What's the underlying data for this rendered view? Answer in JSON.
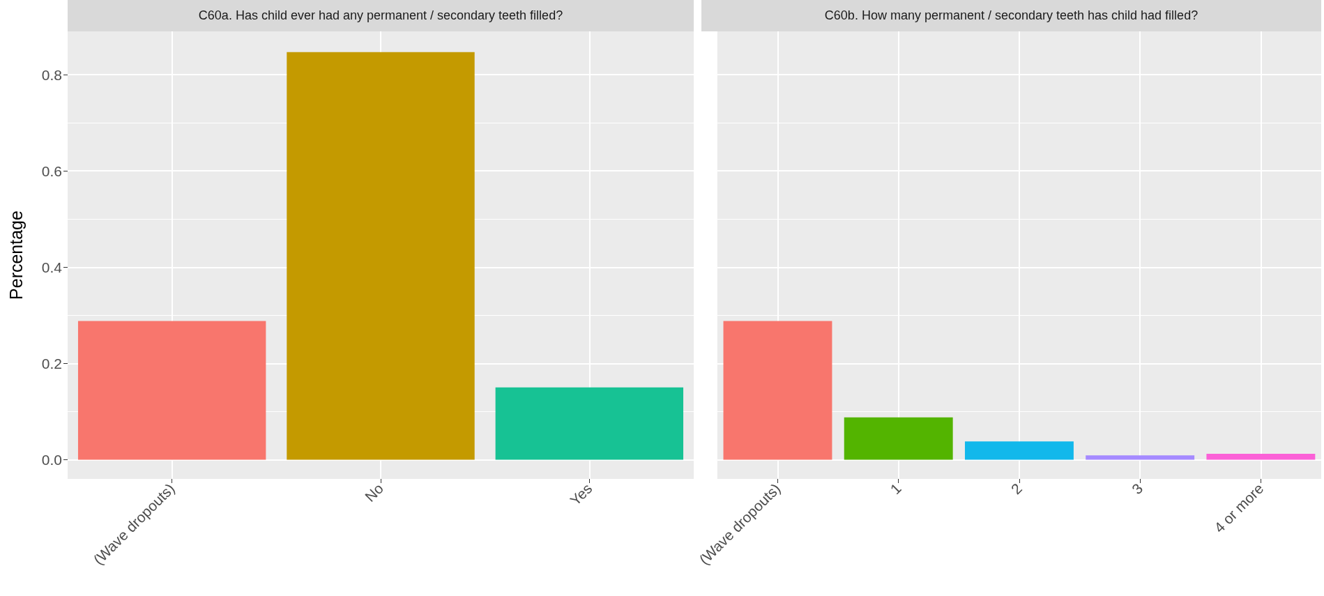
{
  "chart_data": [
    {
      "type": "bar",
      "title": "C60a. Has child ever had any permanent / secondary teeth filled?",
      "ylabel": "Percentage",
      "categories": [
        "(Wave dropouts)",
        "No",
        "Yes"
      ],
      "values": [
        0.288,
        0.847,
        0.15
      ],
      "colors": [
        "#f8766d",
        "#c49a00",
        "#17c294"
      ],
      "ylim": [
        -0.04,
        0.89
      ],
      "yticks": [
        {
          "value": 0,
          "label": "0.0"
        },
        0.2,
        0.4,
        0.6,
        0.8
      ],
      "grid": true
    },
    {
      "type": "bar",
      "title": "C60b. How many permanent / secondary teeth has child had filled?",
      "categories": [
        "(Wave dropouts)",
        "1",
        "2",
        "3",
        "4 or more"
      ],
      "values": [
        0.288,
        0.088,
        0.038,
        0.009,
        0.012
      ],
      "colors": [
        "#f8766d",
        "#53b400",
        "#12b8eb",
        "#a58aff",
        "#fb61d7"
      ],
      "ylim": [
        -0.04,
        0.89
      ],
      "yticks": [
        0,
        0.2,
        0.4,
        0.6,
        0.8
      ],
      "grid": true,
      "tick_labels": "x"
    }
  ]
}
